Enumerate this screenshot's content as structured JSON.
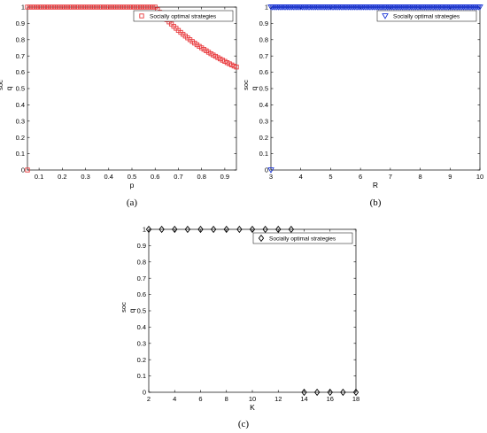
{
  "chart_data": [
    {
      "type": "scatter",
      "caption": "(a)",
      "xlabel": "p",
      "ylabel": "q",
      "ylabel_sup": "soc",
      "xlim": [
        0.05,
        0.95
      ],
      "ylim": [
        0,
        1
      ],
      "xticks": [
        0.1,
        0.2,
        0.3,
        0.4,
        0.5,
        0.6,
        0.7,
        0.8,
        0.9
      ],
      "xtick_labels": [
        "0.1",
        "0.2",
        "0.3",
        "0.4",
        "0.5",
        "0.6",
        "0.7",
        "0.8",
        "0.9"
      ],
      "yticks": [
        0,
        0.1,
        0.2,
        0.3,
        0.4,
        0.5,
        0.6,
        0.7,
        0.8,
        0.9,
        1
      ],
      "ytick_labels": [
        "0",
        "0.1",
        "0.2",
        "0.3",
        "0.4",
        "0.5",
        "0.6",
        "0.7",
        "0.8",
        "0.9",
        "1"
      ],
      "legend": {
        "label": "Socially optimal strategies",
        "position": "top-right"
      },
      "series": [
        {
          "name": "Socially optimal strategies",
          "marker": "square",
          "color": "#e8383b",
          "x": [
            0.05,
            0.06,
            0.07,
            0.08,
            0.09,
            0.1,
            0.11,
            0.12,
            0.13,
            0.14,
            0.15,
            0.16,
            0.17,
            0.18,
            0.19,
            0.2,
            0.21,
            0.22,
            0.23,
            0.24,
            0.25,
            0.26,
            0.27,
            0.28,
            0.29,
            0.3,
            0.31,
            0.32,
            0.33,
            0.34,
            0.35,
            0.36,
            0.37,
            0.38,
            0.39,
            0.4,
            0.41,
            0.42,
            0.43,
            0.44,
            0.45,
            0.46,
            0.47,
            0.48,
            0.49,
            0.5,
            0.51,
            0.52,
            0.53,
            0.54,
            0.55,
            0.56,
            0.57,
            0.58,
            0.59,
            0.6,
            0.61,
            0.62,
            0.63,
            0.64,
            0.65,
            0.66,
            0.67,
            0.68,
            0.69,
            0.7,
            0.71,
            0.72,
            0.73,
            0.74,
            0.75,
            0.76,
            0.77,
            0.78,
            0.79,
            0.8,
            0.81,
            0.82,
            0.83,
            0.84,
            0.85,
            0.86,
            0.87,
            0.88,
            0.89,
            0.9,
            0.91,
            0.92,
            0.93,
            0.94,
            0.95,
            0.05
          ],
          "y": [
            1,
            1,
            1,
            1,
            1,
            1,
            1,
            1,
            1,
            1,
            1,
            1,
            1,
            1,
            1,
            1,
            1,
            1,
            1,
            1,
            1,
            1,
            1,
            1,
            1,
            1,
            1,
            1,
            1,
            1,
            1,
            1,
            1,
            1,
            1,
            1,
            1,
            1,
            1,
            1,
            1,
            1,
            1,
            1,
            1,
            1,
            1,
            1,
            1,
            1,
            1,
            1,
            1,
            1,
            1,
            1,
            0.984,
            0.968,
            0.952,
            0.937,
            0.923,
            0.909,
            0.896,
            0.882,
            0.87,
            0.857,
            0.845,
            0.833,
            0.822,
            0.811,
            0.8,
            0.789,
            0.779,
            0.769,
            0.759,
            0.75,
            0.741,
            0.732,
            0.723,
            0.714,
            0.706,
            0.698,
            0.69,
            0.682,
            0.674,
            0.667,
            0.659,
            0.652,
            0.645,
            0.638,
            0.632,
            0
          ]
        }
      ]
    },
    {
      "type": "scatter",
      "caption": "(b)",
      "xlabel": "R",
      "ylabel": "q",
      "ylabel_sup": "soc",
      "xlim": [
        3,
        10
      ],
      "ylim": [
        0,
        1
      ],
      "xticks": [
        3,
        4,
        5,
        6,
        7,
        8,
        9,
        10
      ],
      "xtick_labels": [
        "3",
        "4",
        "5",
        "6",
        "7",
        "8",
        "9",
        "10"
      ],
      "yticks": [
        0,
        0.1,
        0.2,
        0.3,
        0.4,
        0.5,
        0.6,
        0.7,
        0.8,
        0.9,
        1
      ],
      "ytick_labels": [
        "0",
        "0.1",
        "0.2",
        "0.3",
        "0.4",
        "0.5",
        "0.6",
        "0.7",
        "0.8",
        "0.9",
        "1"
      ],
      "legend": {
        "label": "Socially optimal strategies",
        "position": "top-right"
      },
      "series": [
        {
          "name": "Socially optimal strategies",
          "marker": "triangle-down",
          "color": "#1a35d6",
          "x": [
            3,
            3.05,
            3.1,
            3.15,
            3.2,
            3.25,
            3.3,
            3.35,
            3.4,
            3.45,
            3.5,
            3.55,
            3.6,
            3.65,
            3.7,
            3.75,
            3.8,
            3.85,
            3.9,
            3.95,
            4,
            4.05,
            4.1,
            4.15,
            4.2,
            4.25,
            4.3,
            4.35,
            4.4,
            4.45,
            4.5,
            4.55,
            4.6,
            4.65,
            4.7,
            4.75,
            4.8,
            4.85,
            4.9,
            4.95,
            5,
            5.05,
            5.1,
            5.15,
            5.2,
            5.25,
            5.3,
            5.35,
            5.4,
            5.45,
            5.5,
            5.55,
            5.6,
            5.65,
            5.7,
            5.75,
            5.8,
            5.85,
            5.9,
            5.95,
            6,
            6.05,
            6.1,
            6.15,
            6.2,
            6.25,
            6.3,
            6.35,
            6.4,
            6.45,
            6.5,
            6.55,
            6.6,
            6.65,
            6.7,
            6.75,
            6.8,
            6.85,
            6.9,
            6.95,
            7,
            7.05,
            7.1,
            7.15,
            7.2,
            7.25,
            7.3,
            7.35,
            7.4,
            7.45,
            7.5,
            7.55,
            7.6,
            7.65,
            7.7,
            7.75,
            7.8,
            7.85,
            7.9,
            7.95,
            8,
            8.05,
            8.1,
            8.15,
            8.2,
            8.25,
            8.3,
            8.35,
            8.4,
            8.45,
            8.5,
            8.55,
            8.6,
            8.65,
            8.7,
            8.75,
            8.8,
            8.85,
            8.9,
            8.95,
            9,
            9.05,
            9.1,
            9.15,
            9.2,
            9.25,
            9.3,
            9.35,
            9.4,
            9.45,
            9.5,
            9.55,
            9.6,
            9.65,
            9.7,
            9.75,
            9.8,
            9.85,
            9.9,
            9.95,
            10,
            3
          ],
          "y": [
            1,
            1,
            1,
            1,
            1,
            1,
            1,
            1,
            1,
            1,
            1,
            1,
            1,
            1,
            1,
            1,
            1,
            1,
            1,
            1,
            1,
            1,
            1,
            1,
            1,
            1,
            1,
            1,
            1,
            1,
            1,
            1,
            1,
            1,
            1,
            1,
            1,
            1,
            1,
            1,
            1,
            1,
            1,
            1,
            1,
            1,
            1,
            1,
            1,
            1,
            1,
            1,
            1,
            1,
            1,
            1,
            1,
            1,
            1,
            1,
            1,
            1,
            1,
            1,
            1,
            1,
            1,
            1,
            1,
            1,
            1,
            1,
            1,
            1,
            1,
            1,
            1,
            1,
            1,
            1,
            1,
            1,
            1,
            1,
            1,
            1,
            1,
            1,
            1,
            1,
            1,
            1,
            1,
            1,
            1,
            1,
            1,
            1,
            1,
            1,
            1,
            1,
            1,
            1,
            1,
            1,
            1,
            1,
            1,
            1,
            1,
            1,
            1,
            1,
            1,
            1,
            1,
            1,
            1,
            1,
            1,
            1,
            1,
            1,
            1,
            1,
            1,
            1,
            1,
            1,
            1,
            1,
            1,
            1,
            1,
            1,
            1,
            1,
            1,
            1,
            1,
            0
          ]
        }
      ]
    },
    {
      "type": "scatter",
      "caption": "(c)",
      "xlabel": "K",
      "ylabel": "q",
      "ylabel_sup": "soc",
      "xlim": [
        2,
        18
      ],
      "ylim": [
        0,
        1
      ],
      "xticks": [
        2,
        4,
        6,
        8,
        10,
        12,
        14,
        16,
        18
      ],
      "xtick_labels": [
        "2",
        "4",
        "6",
        "8",
        "10",
        "12",
        "14",
        "16",
        "18"
      ],
      "yticks": [
        0,
        0.1,
        0.2,
        0.3,
        0.4,
        0.5,
        0.6,
        0.7,
        0.8,
        0.9,
        1
      ],
      "ytick_labels": [
        "0",
        "0.1",
        "0.2",
        "0.3",
        "0.4",
        "0.5",
        "0.6",
        "0.7",
        "0.8",
        "0.9",
        "1"
      ],
      "legend": {
        "label": "Socially optimal strategies",
        "position": "top-right"
      },
      "series": [
        {
          "name": "Socially optimal strategies",
          "marker": "diamond",
          "color": "#000000",
          "x": [
            2,
            3,
            4,
            5,
            6,
            7,
            8,
            9,
            10,
            11,
            12,
            13,
            14,
            15,
            16,
            17,
            18
          ],
          "y": [
            1,
            1,
            1,
            1,
            1,
            1,
            1,
            1,
            1,
            1,
            1,
            1,
            0,
            0,
            0,
            0,
            0
          ]
        }
      ]
    }
  ]
}
